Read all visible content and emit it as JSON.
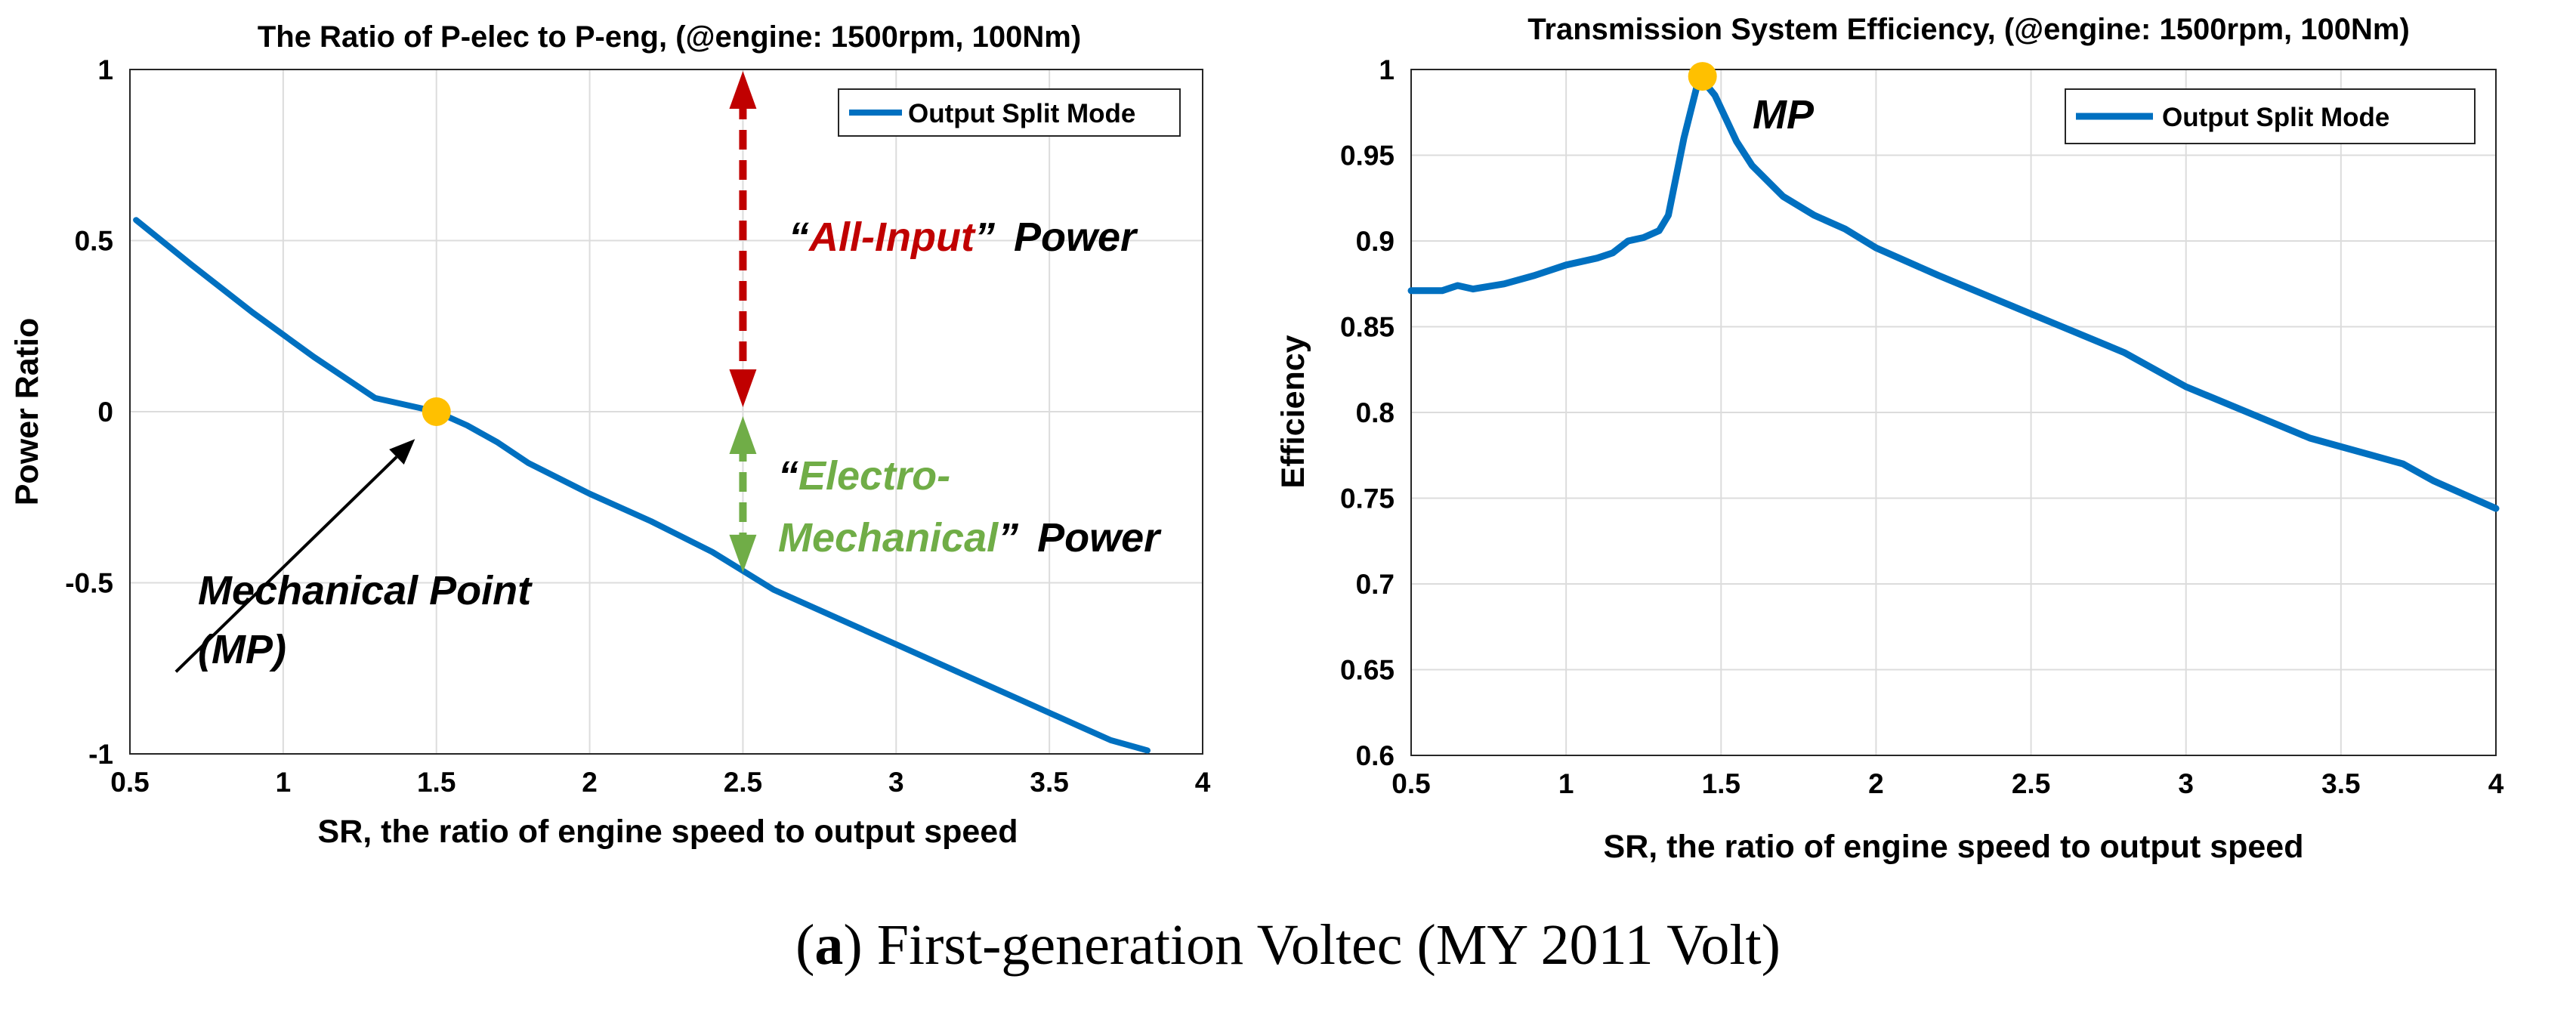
{
  "caption": {
    "letter": "a",
    "text": "First-generation Voltec (MY 2011 Volt)"
  },
  "chart_data": [
    {
      "type": "line",
      "title": "The Ratio of P-elec to P-eng, (@engine: 1500rpm, 100Nm)",
      "xlabel": "SR, the ratio of engine speed to output speed",
      "ylabel": "Power Ratio",
      "xlim": [
        0.5,
        4
      ],
      "ylim": [
        -1,
        1
      ],
      "xticks": [
        "0.5",
        "1",
        "1.5",
        "2",
        "2.5",
        "3",
        "3.5",
        "4"
      ],
      "yticks": [
        "1",
        "0.5",
        "0",
        "-0.5",
        "-1"
      ],
      "grid": true,
      "legend": "top-right",
      "line_color": "#0070c0",
      "series": [
        {
          "name": "Output Split Mode",
          "x": [
            0.52,
            0.7,
            0.9,
            1.1,
            1.3,
            1.5,
            1.6,
            1.7,
            1.8,
            2.0,
            2.2,
            2.4,
            2.6,
            2.8,
            3.0,
            3.2,
            3.4,
            3.6,
            3.7,
            3.82
          ],
          "y": [
            0.56,
            0.43,
            0.29,
            0.16,
            0.04,
            0.0,
            -0.04,
            -0.09,
            -0.15,
            -0.24,
            -0.32,
            -0.41,
            -0.52,
            -0.6,
            -0.68,
            -0.76,
            -0.84,
            -0.92,
            -0.96,
            -0.99
          ]
        }
      ],
      "marker": {
        "x": 1.5,
        "y": 0.0,
        "color": "#ffc000"
      },
      "annotations": {
        "all_input": {
          "q1": "“",
          "main": "All-Input",
          "q2": "”",
          "rest": " Power",
          "color": "#c00000"
        },
        "electro": {
          "q1": "“",
          "line1": "Electro-",
          "line2": "Mechanical",
          "q2": "”",
          "rest": " Power",
          "color": "#70ad47"
        },
        "mp_line1": "Mechanical Point",
        "mp_line2": "(MP)"
      },
      "arrows": {
        "red_color": "#c00000",
        "red_x": 2.5,
        "red_from": 1.0,
        "red_to": 0.0,
        "green_color": "#70ad47",
        "green_x": 2.5,
        "green_from": 0.0,
        "green_to": -0.47,
        "black_from": [
          0.65,
          -0.76
        ],
        "black_to": [
          1.43,
          -0.08
        ]
      }
    },
    {
      "type": "line",
      "title": "Transmission System Efficiency, (@engine: 1500rpm, 100Nm)",
      "xlabel": "SR, the ratio of engine speed to output speed",
      "ylabel": "Efficiency",
      "xlim": [
        0.5,
        4
      ],
      "ylim": [
        0.6,
        1
      ],
      "xticks": [
        "0.5",
        "1",
        "1.5",
        "2",
        "2.5",
        "3",
        "3.5",
        "4"
      ],
      "yticks": [
        "1",
        "0.95",
        "0.9",
        "0.85",
        "0.8",
        "0.75",
        "0.7",
        "0.65",
        "0.6"
      ],
      "grid": true,
      "legend": "top-right",
      "line_color": "#0070c0",
      "series": [
        {
          "name": "Output Split Mode",
          "x": [
            0.5,
            0.6,
            0.65,
            0.7,
            0.8,
            0.9,
            1.0,
            1.1,
            1.15,
            1.2,
            1.25,
            1.3,
            1.33,
            1.38,
            1.43,
            1.48,
            1.55,
            1.6,
            1.7,
            1.8,
            1.9,
            2.0,
            2.2,
            2.4,
            2.6,
            2.8,
            3.0,
            3.2,
            3.4,
            3.6,
            3.7,
            3.8,
            3.9,
            4.0
          ],
          "y": [
            0.871,
            0.871,
            0.874,
            0.872,
            0.875,
            0.88,
            0.886,
            0.89,
            0.893,
            0.9,
            0.902,
            0.906,
            0.915,
            0.96,
            0.996,
            0.985,
            0.958,
            0.944,
            0.926,
            0.915,
            0.907,
            0.896,
            0.88,
            0.865,
            0.85,
            0.835,
            0.815,
            0.8,
            0.785,
            0.775,
            0.77,
            0.76,
            0.752,
            0.744
          ]
        }
      ],
      "marker": {
        "x": 1.44,
        "y": 0.996,
        "color": "#ffc000"
      },
      "annotations": {
        "mp": "MP"
      }
    }
  ]
}
